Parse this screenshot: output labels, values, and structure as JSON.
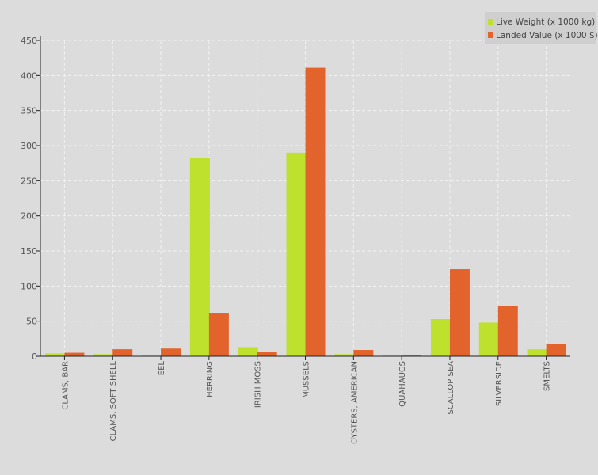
{
  "chart_data": {
    "type": "bar",
    "categories": [
      "CLAMS, BAR",
      "CLAMS, SOFT SHELL",
      "EEL",
      "HERRING",
      "IRISH MOSS",
      "MUSSELS",
      "OYSTERS, AMERICAN",
      "QUAHAUGS",
      "SCALLOP SEA",
      "SILVERSIDE",
      "SMELTS"
    ],
    "series": [
      {
        "name": "Live Weight (x 1000 kg)",
        "color": "#bde12d",
        "values": [
          4,
          3,
          1,
          283,
          13,
          290,
          3,
          1,
          53,
          48,
          10
        ]
      },
      {
        "name": "Landed Value (x 1000 $)",
        "color": "#e2642c",
        "values": [
          5,
          10,
          11,
          62,
          6,
          411,
          9,
          1,
          124,
          72,
          18
        ]
      }
    ],
    "ylim": [
      0,
      450
    ],
    "yticks": [
      0,
      50,
      100,
      150,
      200,
      250,
      300,
      350,
      400,
      450
    ],
    "grid": true,
    "legend_position": "top-right"
  }
}
